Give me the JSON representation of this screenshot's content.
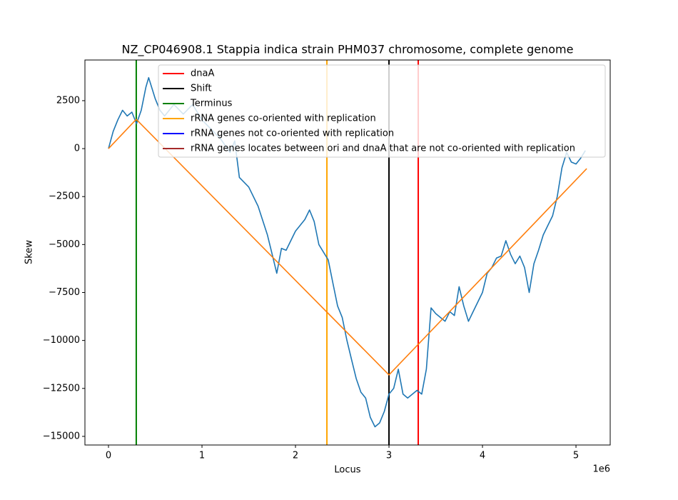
{
  "chart_data": {
    "type": "line",
    "title": "NZ_CP046908.1 Stappia indica strain PHM037 chromosome, complete genome",
    "xlabel": "Locus",
    "ylabel": "Skew",
    "x_offset_label": "1e6",
    "xlim": [
      -252000,
      5366000
    ],
    "ylim": [
      -15450,
      4620
    ],
    "xticks": [
      0,
      {
        "value": 1000000,
        "label": "1"
      },
      {
        "value": 2000000,
        "label": "2"
      },
      {
        "value": 3000000,
        "label": "3"
      },
      {
        "value": 4000000,
        "label": "4"
      },
      {
        "value": 5000000,
        "label": "5"
      }
    ],
    "yticks": [
      2500,
      0,
      {
        "value": -2500,
        "label": "−2500"
      },
      {
        "value": -5000,
        "label": "−5000"
      },
      {
        "value": -7500,
        "label": "−7500"
      },
      {
        "value": -10000,
        "label": "−10000"
      },
      {
        "value": -12500,
        "label": "−12500"
      },
      {
        "value": -15000,
        "label": "−15000"
      }
    ],
    "grid": false,
    "legend": "upper right",
    "series": [
      {
        "color": "#1f77b4",
        "x": [
          0,
          50000,
          100000,
          150000,
          200000,
          250000,
          300000,
          350000,
          400000,
          430000,
          500000,
          550000,
          600000,
          700000,
          800000,
          900000,
          1000000,
          1100000,
          1200000,
          1300000,
          1350000,
          1400000,
          1500000,
          1600000,
          1700000,
          1750000,
          1800000,
          1850000,
          1900000,
          2000000,
          2100000,
          2150000,
          2200000,
          2250000,
          2300000,
          2350000,
          2400000,
          2450000,
          2500000,
          2550000,
          2600000,
          2650000,
          2700000,
          2750000,
          2800000,
          2850000,
          2900000,
          2950000,
          3000000,
          3050000,
          3100000,
          3150000,
          3200000,
          3300000,
          3350000,
          3400000,
          3450000,
          3500000,
          3600000,
          3650000,
          3700000,
          3750000,
          3800000,
          3850000,
          3900000,
          4000000,
          4050000,
          4100000,
          4150000,
          4200000,
          4250000,
          4300000,
          4350000,
          4400000,
          4450000,
          4500000,
          4550000,
          4600000,
          4650000,
          4700000,
          4750000,
          4800000,
          4850000,
          4900000,
          4950000,
          5000000,
          5050000,
          5100000
        ],
        "values": [
          0,
          900,
          1500,
          2000,
          1700,
          1900,
          1300,
          2000,
          3200,
          3700,
          2600,
          2000,
          1700,
          2300,
          1800,
          2300,
          1500,
          1000,
          500,
          -200,
          400,
          -1500,
          -2000,
          -3000,
          -4500,
          -5500,
          -6500,
          -5200,
          -5300,
          -4300,
          -3700,
          -3200,
          -3800,
          -5000,
          -5400,
          -5800,
          -7000,
          -8200,
          -8800,
          -10000,
          -11000,
          -12000,
          -12700,
          -13000,
          -14000,
          -14500,
          -14300,
          -13700,
          -12800,
          -12500,
          -11500,
          -12800,
          -13000,
          -12600,
          -12800,
          -11500,
          -8300,
          -8600,
          -9000,
          -8500,
          -8700,
          -7200,
          -8200,
          -9000,
          -8500,
          -7500,
          -6500,
          -6200,
          -5700,
          -5600,
          -4800,
          -5500,
          -6000,
          -5600,
          -6200,
          -7500,
          -6000,
          -5300,
          -4500,
          -4000,
          -3500,
          -2500,
          -1000,
          -200,
          -700,
          -800,
          -500,
          -100
        ]
      },
      {
        "color": "#ff7f0e",
        "x": [
          0,
          297000,
          3000000,
          5115000
        ],
        "values": [
          0,
          1525,
          -11793,
          -1042
        ]
      }
    ],
    "vlines": [
      {
        "name": "dnaA",
        "color": "red",
        "x": [
          3313000
        ]
      },
      {
        "name": "Shift",
        "color": "black",
        "x": [
          3000000
        ]
      },
      {
        "name": "Terminus",
        "color": "green",
        "x": [
          297000
        ]
      },
      {
        "name": "rRNA genes co-oriented with replication",
        "color": "orange",
        "x": [
          2336000
        ]
      },
      {
        "name": "rRNA genes not co-oriented with replication",
        "color": "blue",
        "x": []
      },
      {
        "name": "rRNA genes locates between ori and dnaA that are not co-oriented with replication",
        "color": "brown",
        "x": []
      }
    ]
  }
}
